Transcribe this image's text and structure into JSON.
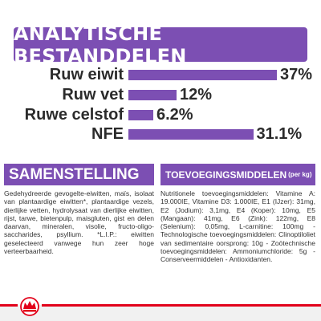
{
  "title": "ANALYTISCHE BESTANDDELEN",
  "analysis": [
    {
      "label": "Ruw eiwit",
      "value": "37%",
      "fraction": 0.37
    },
    {
      "label": "Ruw vet",
      "value": "12%",
      "fraction": 0.12
    },
    {
      "label": "Ruwe celstof",
      "value": "6.2%",
      "fraction": 0.062
    },
    {
      "label": "NFE",
      "value": "31.1%",
      "fraction": 0.311
    }
  ],
  "composition": {
    "heading": "SAMENSTELLING",
    "text": "Gedehydreerde gevogelte-eiwitten, maïs, isolaat van plantaardige eiwitten*, plantaardige vezels, dierlijke vetten, hydrolysaat van dierlijke eiwitten, rijst, tarwe, bietenpulp, maisgluten, gist en delen daarvan, mineralen, visolie, fructo-oligo-saccharides, psyllium. *L.I.P.: eiwitten geselecteerd vanwege hun zeer hoge verteerbaarheid."
  },
  "additives": {
    "heading": "TOEVOEGINGSMIDDELEN",
    "heading_unit": "(per kg)",
    "text": "Nutritionele toevoegingsmiddelen: Vitamine A: 19.000IE, Vitamine D3: 1.000IE, E1 (IJzer): 31mg, E2 (Jodium): 3,1mg, E4 (Koper): 10mg, E5 (Mangaan): 41mg, E6 (Zink): 122mg, E8 (Selenium): 0,05mg, L-carnitine: 100mg - Technologische toevoegingsmiddelen: Clinoptiloliet van sedimentaire oorsprong: 10g - Zoötechnische toevoegingsmiddelen: Ammoniumchloride: 5g - Conserveermiddelen - Antioxidanten."
  },
  "brand": {
    "logo_name": "royal-canin-crown-logo"
  },
  "colors": {
    "accent": "#7c4fb3",
    "brand_red": "#e2001a"
  }
}
